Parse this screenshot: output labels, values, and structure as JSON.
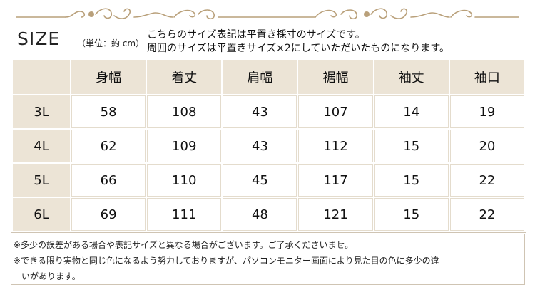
{
  "title": {
    "size_word": "SIZE",
    "unit": "（単位：約 cm）",
    "lines": [
      "こちらのサイズ表記は平置き採寸のサイズです。",
      "周囲のサイズは平置きサイズ×2にしていただいたものになります。"
    ]
  },
  "table": {
    "columns": [
      "身幅",
      "着丈",
      "肩幅",
      "裾幅",
      "袖丈",
      "袖口"
    ],
    "rows": [
      {
        "size": "3L",
        "values": [
          "58",
          "108",
          "43",
          "107",
          "14",
          "19"
        ]
      },
      {
        "size": "4L",
        "values": [
          "62",
          "109",
          "43",
          "112",
          "15",
          "20"
        ]
      },
      {
        "size": "5L",
        "values": [
          "66",
          "110",
          "45",
          "117",
          "15",
          "22"
        ]
      },
      {
        "size": "6L",
        "values": [
          "69",
          "111",
          "48",
          "121",
          "15",
          "22"
        ]
      }
    ]
  },
  "footnotes": {
    "note1": "※多少の誤差がある場合や表記サイズと異なる場合がございます。ご了承くださいませ。",
    "note2a": "※できる限り実物と同じ色になるよう努力しておりますが、パソコンモニター画面により見た目の色に多少の違",
    "note2b": "いがあります。"
  },
  "colors": {
    "header_bg": "#ece4d6",
    "border": "#cfc4b3",
    "ornament": "#b9a07a"
  }
}
